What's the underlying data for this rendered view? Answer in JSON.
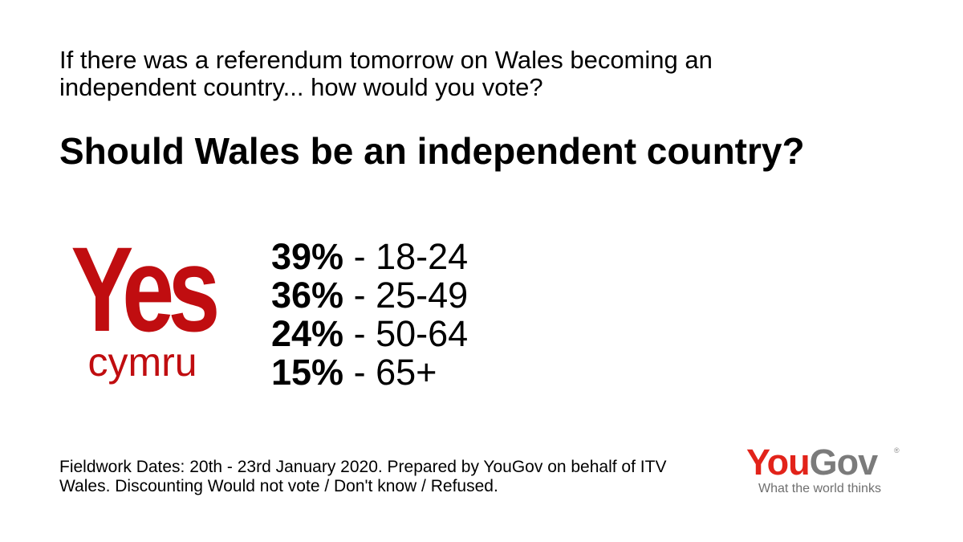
{
  "question": "If there was a referendum tomorrow on Wales becoming an independent country... how would you vote?",
  "headline": "Should Wales be an independent country?",
  "logo": {
    "yes_text": "Yes",
    "cymru_text": "cymru",
    "color": "#c00d10"
  },
  "results": [
    {
      "percent": "39%",
      "separator": " - ",
      "age_group": "18-24"
    },
    {
      "percent": "36%",
      "separator": " - ",
      "age_group": "25-49"
    },
    {
      "percent": "24%",
      "separator": " - ",
      "age_group": "50-64"
    },
    {
      "percent": "15%",
      "separator": " - ",
      "age_group": "65+"
    }
  ],
  "footnote": "Fieldwork Dates: 20th - 23rd January 2020. Prepared by YouGov on behalf of ITV Wales. Discounting Would not vote / Don't know / Refused.",
  "brand": {
    "you": "You",
    "gov": "Gov",
    "registered": "®",
    "tagline": "What the world thinks",
    "you_color": "#e2231a",
    "gov_color": "#7b7b7b"
  }
}
